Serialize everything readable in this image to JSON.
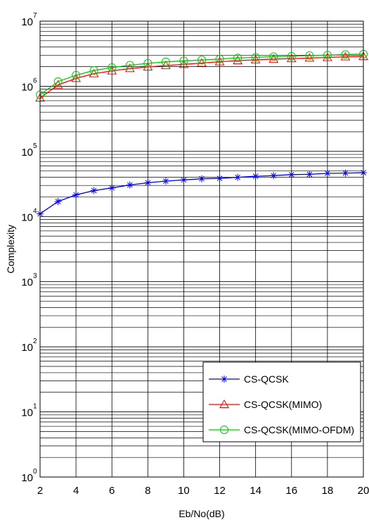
{
  "chart_data": {
    "type": "line",
    "xlabel": "Eb/No(dB)",
    "ylabel": "Complexity",
    "xlim": [
      2,
      20
    ],
    "ylim": [
      1,
      10000000
    ],
    "yscale": "log",
    "grid": true,
    "legend_position": "bottom-right",
    "x_ticks": [
      "2",
      "4",
      "6",
      "8",
      "10",
      "12",
      "14",
      "16",
      "18",
      "20"
    ],
    "y_ticks": [
      {
        "base": "10",
        "exp": "0"
      },
      {
        "base": "10",
        "exp": "1"
      },
      {
        "base": "10",
        "exp": "2"
      },
      {
        "base": "10",
        "exp": "3"
      },
      {
        "base": "10",
        "exp": "4"
      },
      {
        "base": "10",
        "exp": "5"
      },
      {
        "base": "10",
        "exp": "6"
      },
      {
        "base": "10",
        "exp": "7"
      }
    ],
    "x": [
      2,
      3,
      4,
      5,
      6,
      7,
      8,
      9,
      10,
      11,
      12,
      13,
      14,
      15,
      16,
      17,
      18,
      19,
      20
    ],
    "series": [
      {
        "name": "CS-QCSK",
        "color": "#0000ff",
        "marker": "asterisk",
        "values": [
          11000,
          17000,
          21500,
          25000,
          27500,
          30500,
          33000,
          35000,
          36500,
          38000,
          38500,
          40000,
          41500,
          42500,
          44000,
          44500,
          46000,
          46500,
          47000
        ]
      },
      {
        "name": "CS-QCSK(MIMO)",
        "color": "#ff0000",
        "marker": "triangle",
        "values": [
          660000,
          1050000,
          1320000,
          1560000,
          1720000,
          1870000,
          1980000,
          2080000,
          2170000,
          2270000,
          2380000,
          2480000,
          2550000,
          2610000,
          2660000,
          2710000,
          2770000,
          2830000,
          2870000
        ]
      },
      {
        "name": "CS-QCSK(MIMO-OFDM)",
        "color": "#00cc00",
        "marker": "circle",
        "values": [
          740000,
          1180000,
          1480000,
          1750000,
          1940000,
          2100000,
          2250000,
          2370000,
          2460000,
          2530000,
          2620000,
          2720000,
          2780000,
          2850000,
          2890000,
          2960000,
          3010000,
          3070000,
          3120000
        ]
      }
    ]
  }
}
